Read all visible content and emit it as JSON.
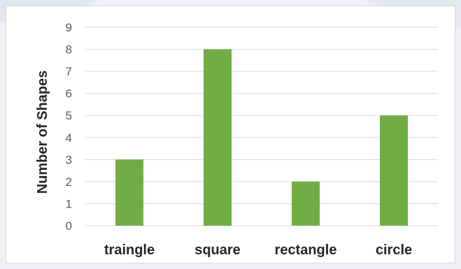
{
  "colors": {
    "background": "#eef0f5",
    "panel": "#ffffff",
    "bar": "#70ad47",
    "grid": "#d9d9d9",
    "tick_text": "#595959",
    "axis_title": "#262626",
    "category_text": "#262626"
  },
  "chart_data": {
    "type": "bar",
    "title": "",
    "xlabel": "",
    "ylabel": "Number of Shapes",
    "categories": [
      "traingle",
      "square",
      "rectangle",
      "circle"
    ],
    "values": [
      3,
      8,
      2,
      5
    ],
    "ylim": [
      0,
      9
    ],
    "yticks": [
      "0",
      "1",
      "2",
      "3",
      "4",
      "5",
      "6",
      "7",
      "8",
      "9"
    ],
    "grid": true,
    "legend": "none"
  }
}
